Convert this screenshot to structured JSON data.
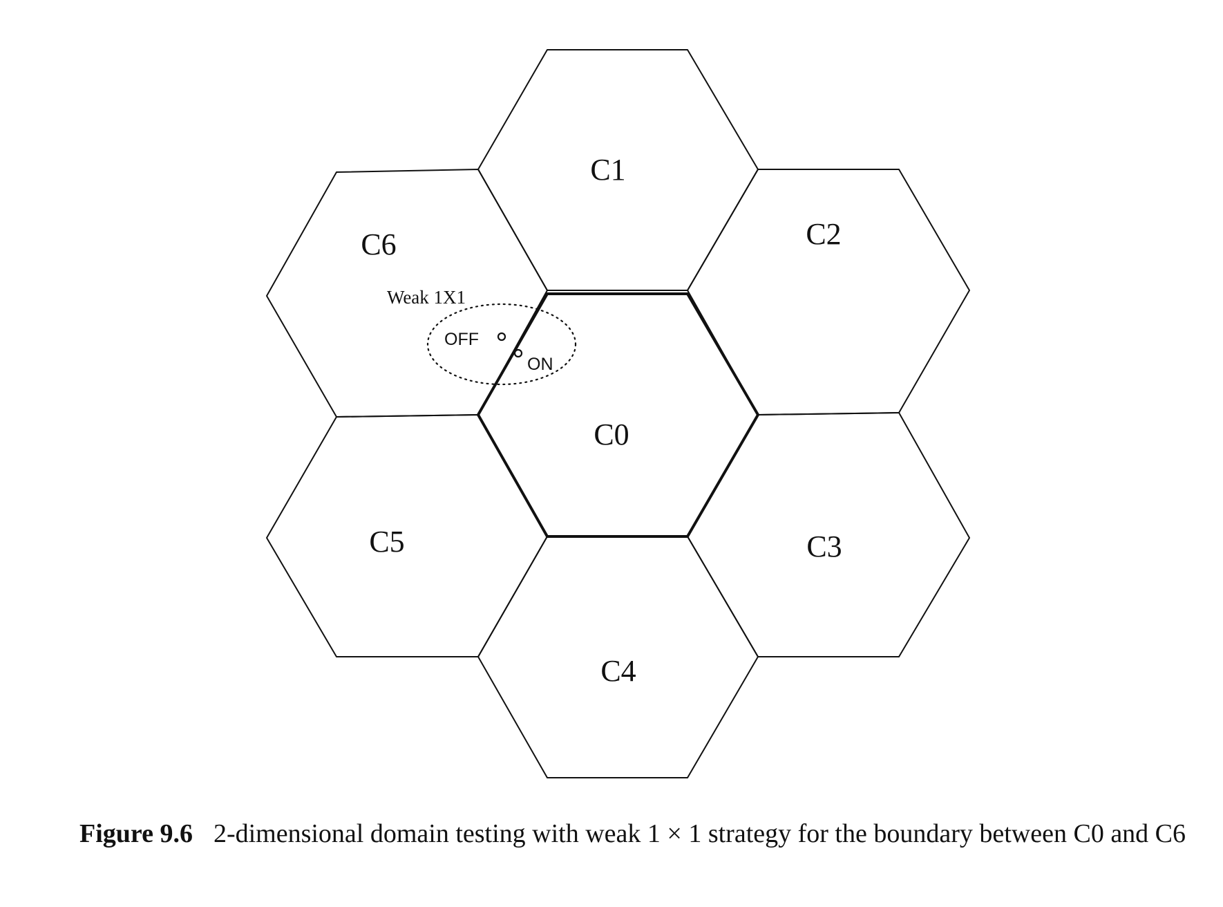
{
  "diagram": {
    "cells": [
      {
        "id": "c1",
        "label": "C1"
      },
      {
        "id": "c2",
        "label": "C2"
      },
      {
        "id": "c3",
        "label": "C3"
      },
      {
        "id": "c4",
        "label": "C4"
      },
      {
        "id": "c5",
        "label": "C5"
      },
      {
        "id": "c6",
        "label": "C6"
      },
      {
        "id": "c0",
        "label": "C0"
      }
    ],
    "test_region": {
      "label": "Weak 1X1",
      "off_point_label": "OFF",
      "on_point_label": "ON"
    }
  },
  "caption": {
    "figure_number": "Figure 9.6",
    "text": "2-dimensional domain testing with weak 1 × 1 strategy for the boundary between C0 and C6"
  }
}
